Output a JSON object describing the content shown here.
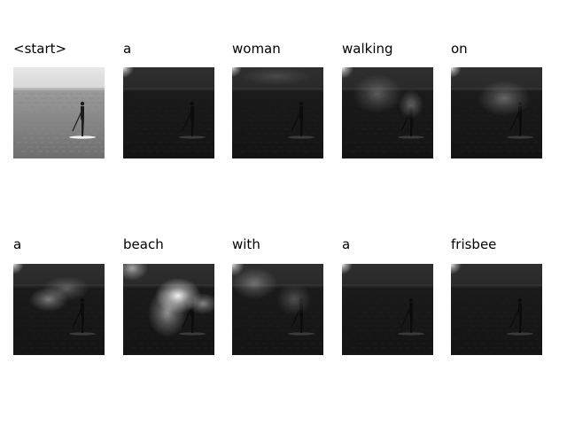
{
  "caption_tokens": [
    {
      "word": "<start>",
      "attention": "none"
    },
    {
      "word": "a",
      "attention": "corner"
    },
    {
      "word": "woman",
      "attention": "corner-faint"
    },
    {
      "word": "walking",
      "attention": "corner-left"
    },
    {
      "word": "on",
      "attention": "corner-right"
    },
    {
      "word": "a",
      "attention": "left-center"
    },
    {
      "word": "beach",
      "attention": "center-bright"
    },
    {
      "word": "with",
      "attention": "corner-diffuse"
    },
    {
      "word": "a",
      "attention": "corner"
    },
    {
      "word": "frisbee",
      "attention": "corner"
    }
  ]
}
